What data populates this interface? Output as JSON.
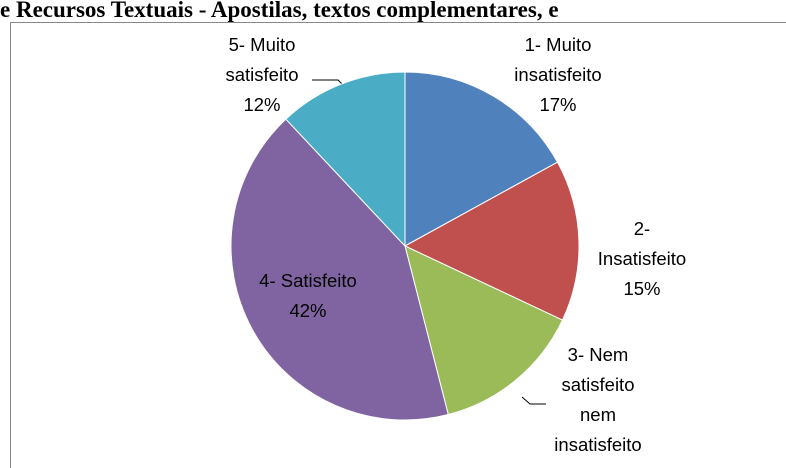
{
  "chart_data": {
    "type": "pie",
    "title": "e Recursos Textuais - Apostilas, textos complementares, e",
    "categories": [
      "1- Muito\ninsatisfeito",
      "2-\nInsatisfeito",
      "3- Nem\nsatisfeito\nnem\ninsatisfeito",
      "4- Satisfeito",
      "5- Muito\nsatisfeito"
    ],
    "values": [
      17,
      15,
      14,
      42,
      12
    ],
    "value_labels": [
      "17%",
      "15%",
      null,
      "42%",
      "12%"
    ],
    "colors": [
      "#4f81bd",
      "#c0504d",
      "#9bbb59",
      "#8064a2",
      "#4bacc6"
    ]
  }
}
